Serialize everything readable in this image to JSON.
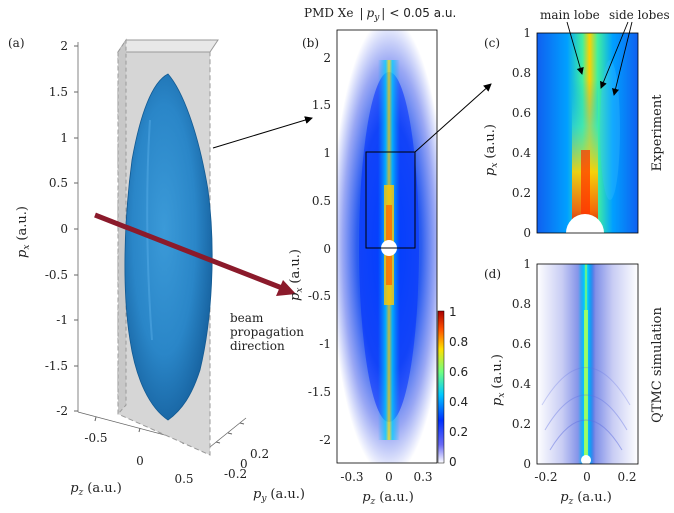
{
  "panels": {
    "a": {
      "label": "(a)",
      "x_ticks": [
        "2",
        "1.5",
        "1",
        "0.5",
        "0",
        "-0.5",
        "-1",
        "-1.5",
        "-2"
      ],
      "axis_label": "p",
      "axis_sub": "x",
      "axis_unit": "(a.u.)",
      "pz_ticks": [
        "-0.5",
        "0",
        "0.5"
      ],
      "pz_label": "p",
      "pz_sub": "z",
      "pz_unit": "(a.u.)",
      "py_ticks": [
        "0.2",
        "0",
        "-0.2"
      ],
      "py_label": "p",
      "py_sub": "y",
      "py_unit": "(a.u.)",
      "beam_text": [
        "beam",
        "propagation",
        "direction"
      ]
    },
    "b": {
      "label": "(b)",
      "title_prefix": "PMD Xe",
      "title_p": "p",
      "title_sub": "y",
      "title_suffix": "< 0.05 a.u.",
      "y_ticks": [
        "2",
        "1.5",
        "1",
        "0.5",
        "0",
        "-0.5",
        "-1",
        "-1.5",
        "-2"
      ],
      "x_ticks": [
        "-0.3",
        "0",
        "0.3"
      ],
      "ylabel_p": "p",
      "ylabel_sub": "x",
      "ylabel_unit": "(a.u.)",
      "xlabel_p": "p",
      "xlabel_sub": "z",
      "xlabel_unit": "(a.u.)",
      "colorbar_ticks": [
        "1",
        "0.8",
        "0.6",
        "0.4",
        "0.2",
        "0"
      ]
    },
    "c": {
      "label": "(c)",
      "y_ticks": [
        "1",
        "0.8",
        "0.6",
        "0.4",
        "0.2",
        "0"
      ],
      "side_label": "Experiment",
      "annot_main": "main lobe",
      "annot_side": "side lobes",
      "ylabel_p": "p",
      "ylabel_sub": "x",
      "ylabel_unit": "(a.u.)"
    },
    "d": {
      "label": "(d)",
      "y_ticks": [
        "1",
        "0.8",
        "0.6",
        "0.4",
        "0.2",
        "0"
      ],
      "x_ticks": [
        "-0.2",
        "0",
        "0.2"
      ],
      "side_label": "QTMC simulation",
      "ylabel_p": "p",
      "ylabel_sub": "x",
      "ylabel_unit": "(a.u.)",
      "xlabel_p": "p",
      "xlabel_sub": "z",
      "xlabel_unit": "(a.u.)"
    }
  },
  "colors": {
    "surface": "#2a86c8",
    "arrow": "#8b1a2b",
    "plane": "#d9d9d9"
  }
}
